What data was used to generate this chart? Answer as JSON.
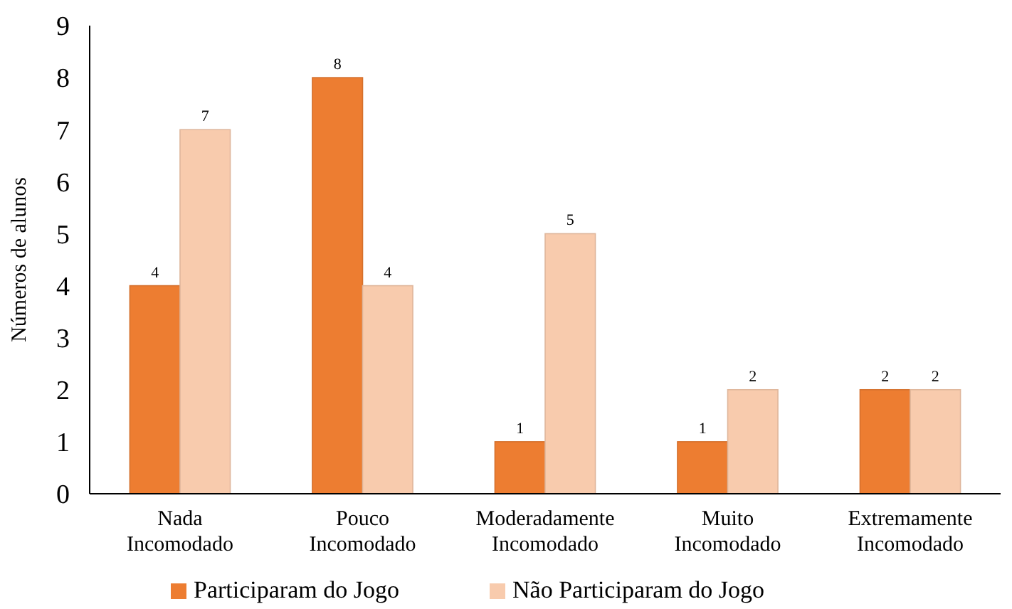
{
  "chart_data": {
    "type": "bar",
    "ylabel": "Números de alunos",
    "categories": [
      "Nada Incomodado",
      "Pouco Incomodado",
      "Moderadamente Incomodado",
      "Muito Incomodado",
      "Extremamente Incomodado"
    ],
    "series": [
      {
        "name": "Participaram do Jogo",
        "color": "#ed7d31",
        "values": [
          4,
          8,
          1,
          1,
          2
        ]
      },
      {
        "name": "Não Participaram do Jogo",
        "color": "#f8cbad",
        "values": [
          7,
          4,
          5,
          2,
          2
        ]
      }
    ],
    "ylim": [
      0,
      9
    ],
    "yticks": [
      0,
      1,
      2,
      3,
      4,
      5,
      6,
      7,
      8,
      9
    ],
    "data_labels": true,
    "legend": "bottom",
    "grid": false
  }
}
